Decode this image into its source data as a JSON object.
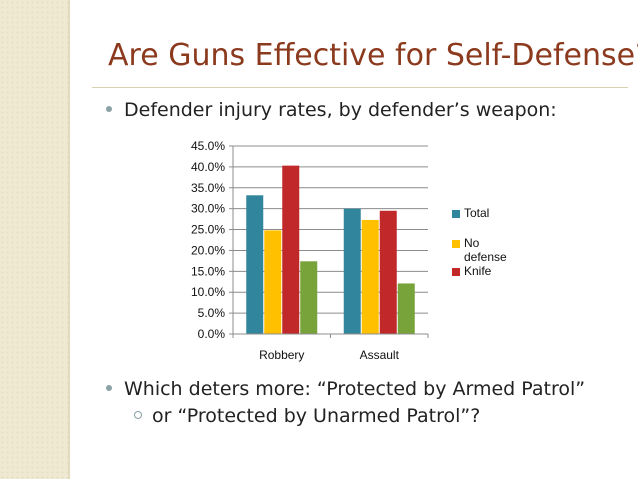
{
  "slide": {
    "title": "Are Guns Effective for Self-Defense?",
    "bullet1": "Defender injury rates, by defender’s weapon:",
    "bullet2": "Which deters more: “Protected by Armed Patrol”",
    "sub_bullet": "or “Protected by Unarmed Patrol”?"
  },
  "chart_data": {
    "type": "bar",
    "categories": [
      "Robbery",
      "Assault"
    ],
    "series": [
      {
        "name": "Total",
        "color": "#31859c",
        "values": [
          33.2,
          30.0
        ]
      },
      {
        "name": "No defense",
        "color": "#ffc000",
        "values": [
          24.8,
          27.3
        ]
      },
      {
        "name": "Knife",
        "color": "#c0282a",
        "values": [
          40.3,
          29.5
        ]
      },
      {
        "name": "",
        "color": "#77a33a",
        "values": [
          17.4,
          12.1
        ]
      }
    ],
    "ylim": [
      0,
      45
    ],
    "yticks": [
      "0.0%",
      "5.0%",
      "10.0%",
      "15.0%",
      "20.0%",
      "25.0%",
      "30.0%",
      "35.0%",
      "40.0%",
      "45.0%"
    ],
    "grid": true,
    "legend": "right",
    "title": "",
    "xlabel": "",
    "ylabel": ""
  }
}
